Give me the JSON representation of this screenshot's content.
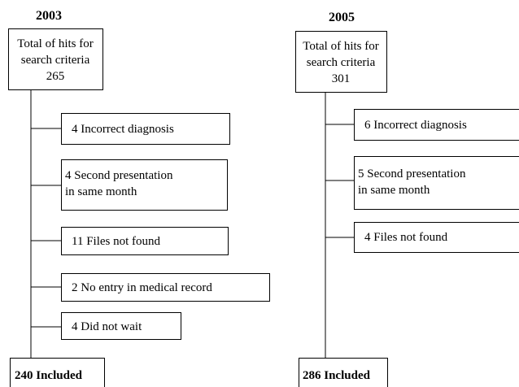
{
  "flows": [
    {
      "title": "2003",
      "total": [
        "Total of hits for",
        "search criteria",
        "265"
      ],
      "exclusions": [
        [
          "4 Incorrect diagnosis"
        ],
        [
          "4 Second presentation",
          "in same month"
        ],
        [
          "11 Files not found"
        ],
        [
          "2 No entry in medical record"
        ],
        [
          "4 Did not wait"
        ]
      ],
      "included": "240 Included"
    },
    {
      "title": "2005",
      "total": [
        "Total of hits for",
        "search criteria",
        "301"
      ],
      "exclusions": [
        [
          "6 Incorrect diagnosis"
        ],
        [
          "5 Second presentation",
          "in same month"
        ],
        [
          "4 Files not found"
        ]
      ],
      "included": "286 Included"
    }
  ]
}
